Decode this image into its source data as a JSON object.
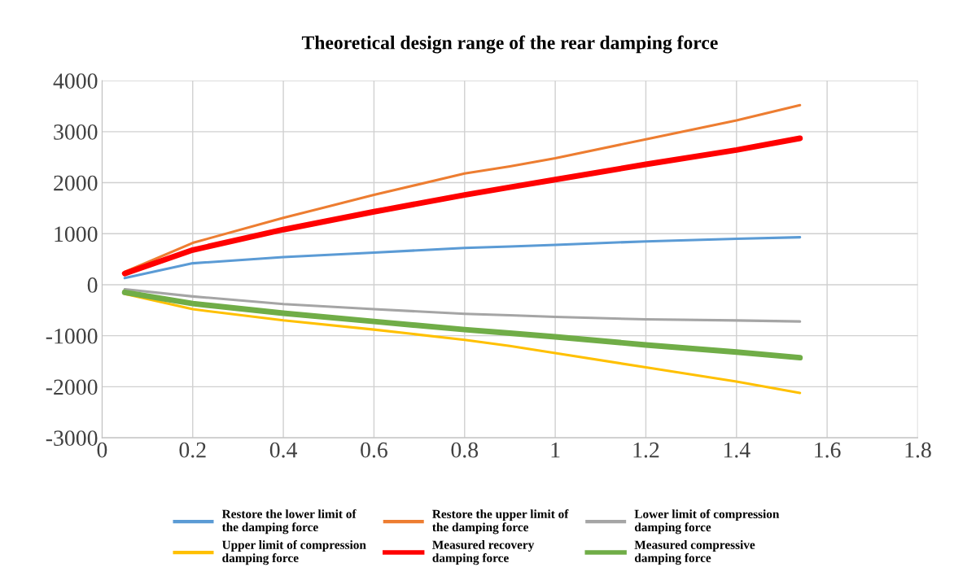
{
  "chart_data": {
    "type": "line",
    "title": "Theoretical design range of the rear damping force",
    "x": [
      0.05,
      0.2,
      0.4,
      0.6,
      0.8,
      0.9,
      1.0,
      1.2,
      1.4,
      1.54
    ],
    "series": [
      {
        "name": "Restore the lower limit of the damping force",
        "color": "#5b9bd5",
        "values": [
          130,
          420,
          540,
          630,
          720,
          750,
          780,
          850,
          900,
          930
        ]
      },
      {
        "name": "Restore the upper limit of the damping force",
        "color": "#ed7d31",
        "values": [
          250,
          820,
          1310,
          1760,
          2180,
          2320,
          2480,
          2850,
          3220,
          3520
        ]
      },
      {
        "name": "Lower limit of compression damping force",
        "color": "#a5a5a5",
        "values": [
          -90,
          -230,
          -380,
          -480,
          -570,
          -600,
          -630,
          -680,
          -700,
          -720
        ]
      },
      {
        "name": "Upper limit of compression damping force",
        "color": "#ffc000",
        "values": [
          -180,
          -480,
          -700,
          -880,
          -1080,
          -1200,
          -1340,
          -1620,
          -1900,
          -2120
        ]
      },
      {
        "name": "Measured recovery damping force",
        "color": "#ff0000",
        "values": [
          220,
          680,
          1080,
          1430,
          1760,
          1910,
          2060,
          2360,
          2640,
          2870
        ]
      },
      {
        "name": "Measured compressive damping force",
        "color": "#70ad47",
        "values": [
          -150,
          -370,
          -560,
          -720,
          -880,
          -950,
          -1020,
          -1180,
          -1320,
          -1430
        ]
      }
    ],
    "xlim": [
      0,
      1.8
    ],
    "xticks": [
      0,
      0.2,
      0.4,
      0.6,
      0.8,
      1,
      1.2,
      1.4,
      1.6,
      1.8
    ],
    "ylim": [
      -3000,
      4000
    ],
    "yticks": [
      -3000,
      -2000,
      -1000,
      0,
      1000,
      2000,
      3000,
      4000
    ],
    "grid": true,
    "legend": "bottom",
    "marker": "none",
    "line_style": "solid"
  }
}
